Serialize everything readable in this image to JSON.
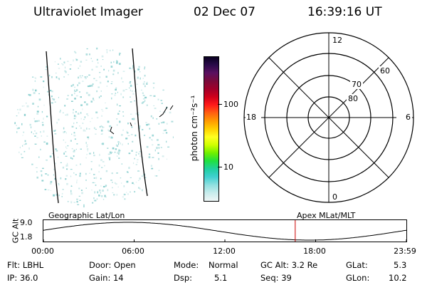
{
  "header": {
    "instrument": "Ultraviolet Imager",
    "date": "02 Dec 07",
    "time": "16:39:16 UT"
  },
  "colorbar": {
    "unit_label": "photon cm⁻²s⁻¹",
    "ticks": [
      "100",
      "10"
    ],
    "colors": [
      "#0a0020",
      "#2a0a4a",
      "#5a1060",
      "#7a0a3a",
      "#a0002a",
      "#d0001a",
      "#ff1a1a",
      "#ff6010",
      "#ff9a00",
      "#ffd000",
      "#ffff20",
      "#d0ff00",
      "#70f000",
      "#20e040",
      "#20d0a0",
      "#40d0d0",
      "#90e0e0",
      "#c8ecec",
      "#eef6f6"
    ]
  },
  "polar_plot": {
    "lat_labels": [
      "80",
      "70",
      "60"
    ],
    "mlt_labels": {
      "top": "12",
      "right": "6",
      "bottom": "0",
      "left": "18"
    }
  },
  "alt_panel": {
    "left_title": "Geographic Lat/Lon",
    "right_title": "Apex MLat/MLT",
    "ylabel": "GC Alt",
    "ymax_label": "9.0",
    "ymin_label": "1.8",
    "x_ticks": [
      "00:00",
      "06:00",
      "12:00",
      "18:00",
      "23:59"
    ],
    "current_marker_time": "16:39"
  },
  "info": {
    "flt": "Flt: LBHL",
    "ip": "IP: 36.0",
    "door": "Door: Open",
    "gain": "Gain: 14",
    "mode_label": "Mode:",
    "mode_value": "Normal",
    "dsp_label": "Dsp:",
    "dsp_value": "5.1",
    "gcalt": "GC Alt: 3.2 Re",
    "seq": "Seq: 39",
    "glat_label": "GLat:",
    "glat_value": "5.3",
    "glon_label": "GLon:",
    "glon_value": "10.2"
  }
}
